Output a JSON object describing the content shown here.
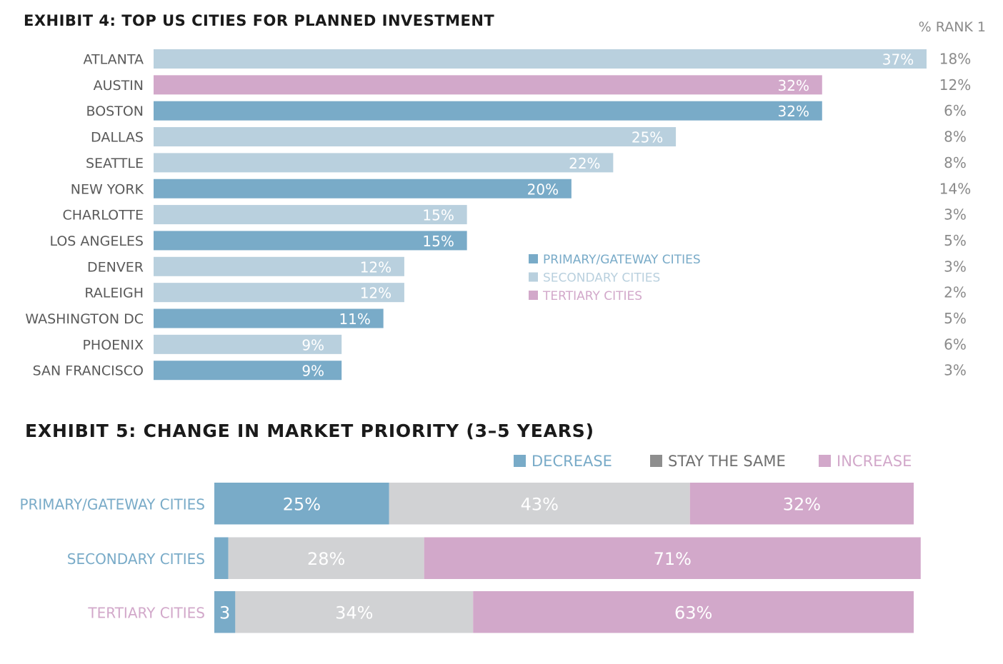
{
  "colors": {
    "primary": "#79abc8",
    "secondary": "#b9d0de",
    "tertiary": "#d2a8ca",
    "stay": "#d1d2d4",
    "axis_text": "#5a5a5a",
    "rank_text": "#8a8a8a",
    "title_text": "#1a1a1a"
  },
  "chart_data": [
    {
      "type": "bar",
      "orientation": "horizontal",
      "title": "EXHIBIT 4: TOP US CITIES FOR PLANNED INVESTMENT",
      "rank_header": "% RANK 1",
      "categories": [
        "ATLANTA",
        "AUSTIN",
        "BOSTON",
        "DALLAS",
        "SEATTLE",
        "NEW YORK",
        "CHARLOTTE",
        "LOS ANGELES",
        "DENVER",
        "RALEIGH",
        "WASHINGTON DC",
        "PHOENIX",
        "SAN FRANCISCO"
      ],
      "values": [
        37,
        32,
        32,
        25,
        22,
        20,
        15,
        15,
        12,
        12,
        11,
        9,
        9
      ],
      "value_labels": [
        "37%",
        "32%",
        "32%",
        "25%",
        "22%",
        "20%",
        "15%",
        "15%",
        "12%",
        "12%",
        "11%",
        "9%",
        "9%"
      ],
      "groups": [
        "secondary",
        "tertiary",
        "primary",
        "secondary",
        "secondary",
        "primary",
        "secondary",
        "primary",
        "secondary",
        "secondary",
        "primary",
        "secondary",
        "primary"
      ],
      "rank1": [
        "18%",
        "12%",
        "6%",
        "8%",
        "8%",
        "14%",
        "3%",
        "5%",
        "3%",
        "2%",
        "5%",
        "6%",
        "3%"
      ],
      "legend": [
        {
          "key": "primary",
          "label": "PRIMARY/GATEWAY CITIES"
        },
        {
          "key": "secondary",
          "label": "SECONDARY CITIES"
        },
        {
          "key": "tertiary",
          "label": "TERTIARY CITIES"
        }
      ],
      "xlim": [
        0,
        37
      ],
      "grid": false
    },
    {
      "type": "bar",
      "orientation": "horizontal",
      "stacked": true,
      "title": "EXHIBIT 5: CHANGE IN MARKET PRIORITY (3–5 YEARS)",
      "categories": [
        "PRIMARY/GATEWAY CITIES",
        "SECONDARY CITIES",
        "TERTIARY CITIES"
      ],
      "category_groups": [
        "primary",
        "secondary",
        "tertiary"
      ],
      "series": [
        {
          "name": "DECREASE",
          "key": "decrease",
          "values": [
            25,
            2,
            3
          ],
          "labels": [
            "25%",
            "",
            "3"
          ]
        },
        {
          "name": "STAY THE SAME",
          "key": "stay",
          "values": [
            43,
            28,
            34
          ],
          "labels": [
            "43%",
            "28%",
            "34%"
          ]
        },
        {
          "name": "INCREASE",
          "key": "increase",
          "values": [
            32,
            71,
            63
          ],
          "labels": [
            "32%",
            "71%",
            "63%"
          ]
        }
      ],
      "xlim": [
        0,
        100
      ],
      "legend_position": "top-right",
      "grid": false
    }
  ]
}
